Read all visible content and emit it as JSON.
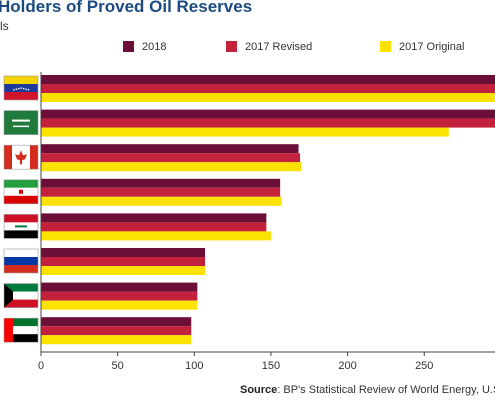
{
  "chart_data": {
    "type": "bar",
    "orientation": "horizontal",
    "title": "Holders of Proved Oil Reserves",
    "subtitle": "ls",
    "categories": [
      "Venezuela",
      "Saudi Arabia",
      "Canada",
      "Iran",
      "Iraq",
      "Russia",
      "Kuwait",
      "United Arab Emirates"
    ],
    "category_icons": [
      "venezuela-flag",
      "saudi-arabia-flag",
      "canada-flag",
      "iran-flag",
      "iraq-flag",
      "russia-flag",
      "kuwait-flag",
      "uae-flag"
    ],
    "series": [
      {
        "name": "2018",
        "color": "#6b0f38",
        "values": [
          303,
          297,
          168,
          156,
          147,
          107,
          102,
          98
        ]
      },
      {
        "name": "2017 Revised",
        "color": "#c4213c",
        "values": [
          303,
          297,
          169,
          156,
          147,
          107,
          102,
          98
        ]
      },
      {
        "name": "2017 Original",
        "color": "#fbe200",
        "values": [
          303,
          266,
          170,
          157,
          150,
          107,
          102,
          98
        ]
      }
    ],
    "xlim": [
      0,
      300
    ],
    "xticks": [
      "0",
      "50",
      "100",
      "150",
      "200",
      "250",
      "3"
    ],
    "legend_position": "top",
    "grid": false
  },
  "source": {
    "label": "Source",
    "text": ": BP's Statistical Review of World Energy, U.S"
  }
}
